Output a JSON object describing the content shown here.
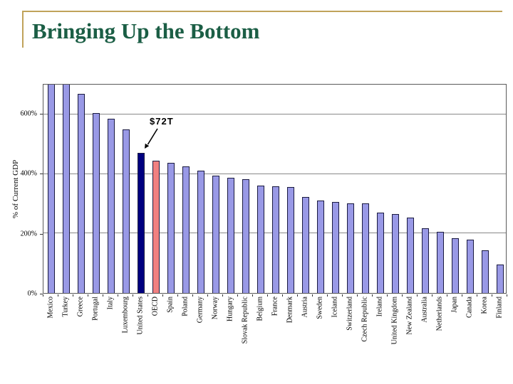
{
  "slide": {
    "title": "Bringing Up the Bottom",
    "accent_colors": {
      "title_green": "#1B5E45",
      "rule_gold": "#C0A35A"
    }
  },
  "chart_data": {
    "type": "bar",
    "title": "",
    "xlabel": "",
    "ylabel": "% of Current GDP",
    "ylim": [
      0,
      700
    ],
    "grid": "horizontal gridlines at 200, 400, 600",
    "legend": "none",
    "y_ticks": [
      {
        "value": 0,
        "label": "0%"
      },
      {
        "value": 200,
        "label": "200%"
      },
      {
        "value": 400,
        "label": "400%"
      },
      {
        "value": 600,
        "label": "600%"
      }
    ],
    "categories": [
      "Mexico",
      "Turkey",
      "Greece",
      "Portugal",
      "Italy",
      "Luxembourg",
      "United States",
      "OECD",
      "Spain",
      "Poland",
      "Germany",
      "Norway",
      "Hungary",
      "Slovak Republic",
      "Belgium",
      "France",
      "Denmark",
      "Austria",
      "Sweden",
      "Iceland",
      "Switzerland",
      "Czech Republic",
      "Ireland",
      "United Kingdom",
      "New Zealand",
      "Australia",
      "Netherlands",
      "Japan",
      "Canada",
      "Korea",
      "Finland"
    ],
    "values": [
      705,
      705,
      670,
      605,
      585,
      550,
      470,
      445,
      438,
      425,
      412,
      395,
      386,
      382,
      360,
      358,
      356,
      322,
      310,
      305,
      302,
      300,
      270,
      266,
      253,
      218,
      206,
      184,
      179,
      144,
      96
    ],
    "bar_colors": {
      "default": "#9999E6",
      "United States": "#000080",
      "OECD": "#F08080"
    },
    "annotation": {
      "text": "$72T",
      "points_to": "United States"
    },
    "note": "Mexico and Turkey bars exceed the 700% axis maximum and are clipped at the plot top"
  }
}
